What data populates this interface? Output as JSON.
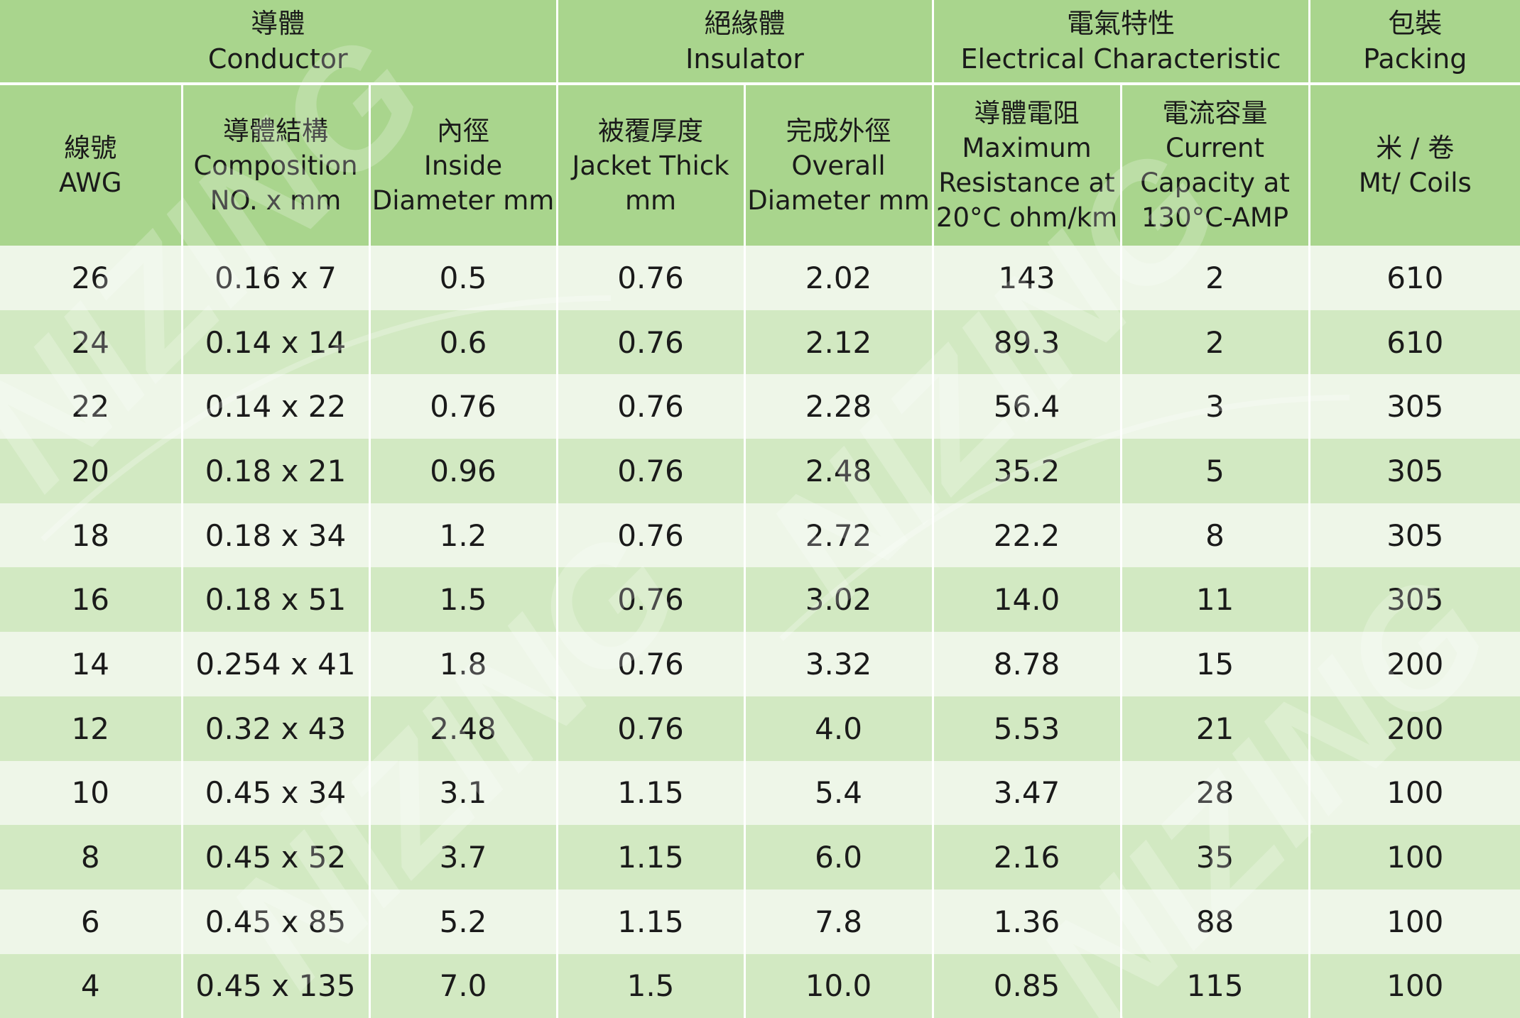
{
  "header": {
    "groups": [
      {
        "zh": "導體",
        "en": "Conductor"
      },
      {
        "zh": "絕緣體",
        "en": "Insulator"
      },
      {
        "zh": "電氣特性",
        "en": "Electrical Characteristic"
      },
      {
        "zh": "包裝",
        "en": "Packing"
      }
    ],
    "columns": [
      {
        "lines": [
          "線號",
          "AWG"
        ]
      },
      {
        "lines": [
          "導體結構",
          "Composition",
          "NO. x mm"
        ]
      },
      {
        "lines": [
          "內徑",
          "Inside",
          "Diameter mm"
        ]
      },
      {
        "lines": [
          "被覆厚度",
          "Jacket Thick",
          "mm"
        ]
      },
      {
        "lines": [
          "完成外徑",
          "Overall",
          "Diameter mm"
        ]
      },
      {
        "lines": [
          "導體電阻",
          "Maximum",
          "Resistance at",
          "20°C ohm/km"
        ]
      },
      {
        "lines": [
          "電流容量",
          "Current",
          "Capacity at",
          "130°C-AMP"
        ]
      },
      {
        "lines": [
          "米 / 卷",
          "Mt/ Coils"
        ]
      }
    ]
  },
  "rows": [
    [
      "26",
      "0.16 x 7",
      "0.5",
      "0.76",
      "2.02",
      "143",
      "2",
      "610"
    ],
    [
      "24",
      "0.14 x 14",
      "0.6",
      "0.76",
      "2.12",
      "89.3",
      "2",
      "610"
    ],
    [
      "22",
      "0.14 x 22",
      "0.76",
      "0.76",
      "2.28",
      "56.4",
      "3",
      "305"
    ],
    [
      "20",
      "0.18 x 21",
      "0.96",
      "0.76",
      "2.48",
      "35.2",
      "5",
      "305"
    ],
    [
      "18",
      "0.18 x 34",
      "1.2",
      "0.76",
      "2.72",
      "22.2",
      "8",
      "305"
    ],
    [
      "16",
      "0.18 x 51",
      "1.5",
      "0.76",
      "3.02",
      "14.0",
      "11",
      "305"
    ],
    [
      "14",
      "0.254 x 41",
      "1.8",
      "0.76",
      "3.32",
      "8.78",
      "15",
      "200"
    ],
    [
      "12",
      "0.32 x 43",
      "2.48",
      "0.76",
      "4.0",
      "5.53",
      "21",
      "200"
    ],
    [
      "10",
      "0.45 x 34",
      "3.1",
      "1.15",
      "5.4",
      "3.47",
      "28",
      "100"
    ],
    [
      "8",
      "0.45 x 52",
      "3.7",
      "1.15",
      "6.0",
      "2.16",
      "35",
      "100"
    ],
    [
      "6",
      "0.45 x 85",
      "5.2",
      "1.15",
      "7.8",
      "1.36",
      "88",
      "100"
    ],
    [
      "4",
      "0.45 x 135",
      "7.0",
      "1.5",
      "10.0",
      "0.85",
      "115",
      "100"
    ]
  ],
  "watermark": {
    "text": "NIZING"
  },
  "colors": {
    "header_green": "#a9d58d",
    "row_light": "#eef6e8",
    "row_green": "#d2e9c2",
    "text": "#1a1a1a"
  }
}
